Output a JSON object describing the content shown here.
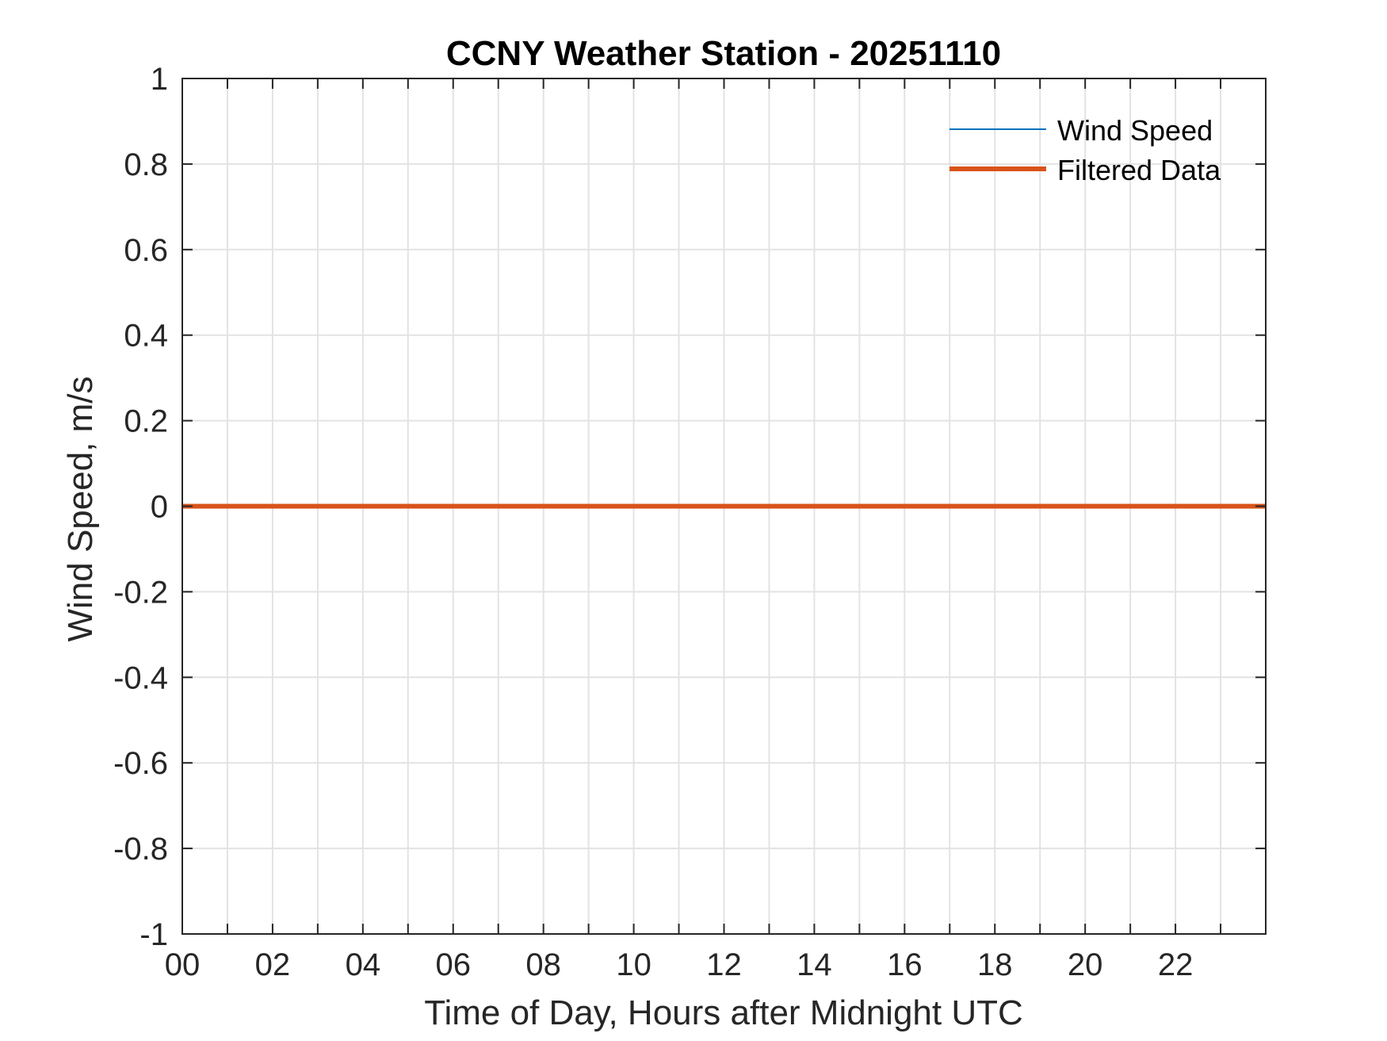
{
  "chart_data": {
    "type": "line",
    "title": "CCNY Weather Station - 20251110",
    "xlabel": "Time of Day, Hours after Midnight UTC",
    "ylabel": "Wind Speed, m/s",
    "xlim": [
      0,
      24
    ],
    "ylim": [
      -1,
      1
    ],
    "grid": true,
    "x_minor_grid_step": 1,
    "x_ticks": [
      0,
      2,
      4,
      6,
      8,
      10,
      12,
      14,
      16,
      18,
      20,
      22
    ],
    "x_tick_labels": [
      "00",
      "02",
      "04",
      "06",
      "08",
      "10",
      "12",
      "14",
      "16",
      "18",
      "20",
      "22"
    ],
    "y_ticks": [
      -1,
      -0.8,
      -0.6,
      -0.4,
      -0.2,
      0,
      0.2,
      0.4,
      0.6,
      0.8,
      1
    ],
    "y_tick_labels": [
      "-1",
      "-0.8",
      "-0.6",
      "-0.4",
      "-0.2",
      "0",
      "0.2",
      "0.4",
      "0.6",
      "0.8",
      "1"
    ],
    "legend_position": "top-right",
    "series": [
      {
        "name": "Wind Speed",
        "color": "#0072BD",
        "x": [
          0,
          24
        ],
        "y": [
          0,
          0
        ]
      },
      {
        "name": "Filtered Data",
        "color": "#D95319",
        "x": [
          0,
          24
        ],
        "y": [
          0,
          0
        ]
      }
    ]
  }
}
